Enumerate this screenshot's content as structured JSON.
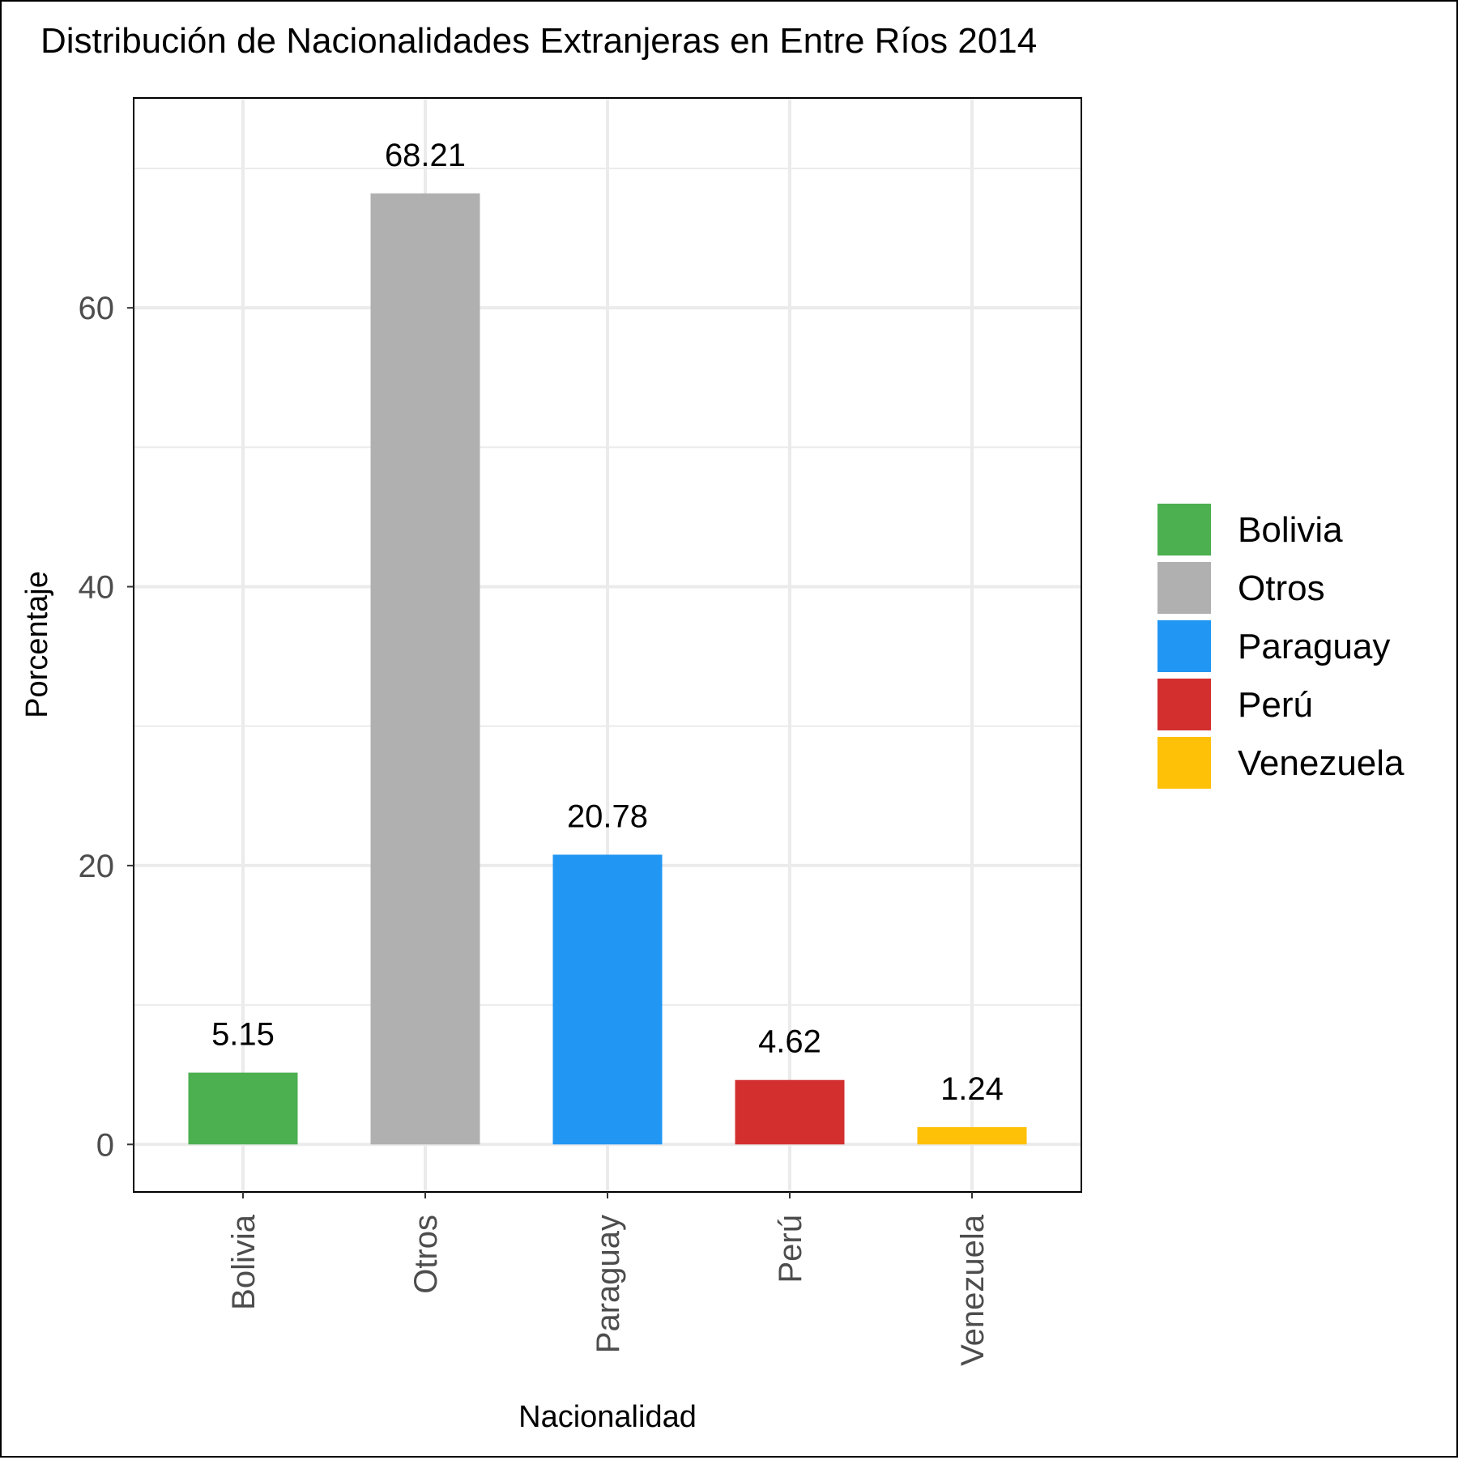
{
  "chart_data": {
    "type": "bar",
    "title": "Distribución de Nacionalidades Extranjeras en Entre Ríos 2014",
    "xlabel": "Nacionalidad",
    "ylabel": "Porcentaje",
    "categories": [
      "Bolivia",
      "Otros",
      "Paraguay",
      "Perú",
      "Venezuela"
    ],
    "values": [
      5.15,
      68.21,
      20.78,
      4.62,
      1.24
    ],
    "value_labels": [
      "5.15",
      "68.21",
      "20.78",
      "4.62",
      "1.24"
    ],
    "colors": [
      "#4caf50",
      "#b0b0b0",
      "#2196f3",
      "#d32f2f",
      "#ffc107"
    ],
    "ylim": [
      -3.41,
      75.05
    ],
    "yticks": [
      0,
      20,
      40,
      60
    ],
    "ytick_labels": [
      "0",
      "20",
      "40",
      "60"
    ],
    "grid": true,
    "legend": {
      "position": "right",
      "entries": [
        "Bolivia",
        "Otros",
        "Paraguay",
        "Perú",
        "Venezuela"
      ]
    }
  }
}
